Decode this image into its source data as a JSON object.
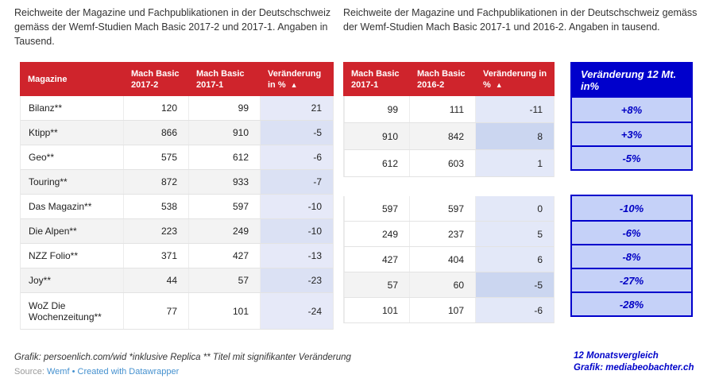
{
  "chart_data": [
    {
      "type": "table",
      "title": "Reichweite der Magazine und Fachpublikationen in der Deutschschweiz gemäss der Wemf-Studien Mach Basic 2017-2 und 2017-1. Angaben in Tausend.",
      "columns": [
        "Magazine",
        "Mach Basic 2017-2",
        "Mach Basic 2017-1",
        "Veränderung in %"
      ],
      "sort_icon": "▲",
      "rows": [
        [
          "Bilanz**",
          120,
          99,
          21
        ],
        [
          "Ktipp**",
          866,
          910,
          -5
        ],
        [
          "Geo**",
          575,
          612,
          -6
        ],
        [
          "Touring**",
          872,
          933,
          -7
        ],
        [
          "Das Magazin**",
          538,
          597,
          -10
        ],
        [
          "Die Alpen**",
          223,
          249,
          -10
        ],
        [
          "NZZ Folio**",
          371,
          427,
          -13
        ],
        [
          "Joy**",
          44,
          57,
          -23
        ],
        [
          "WoZ Die Wochenzeitung**",
          77,
          101,
          -24
        ]
      ]
    },
    {
      "type": "table",
      "title": "Reichweite der Magazine und Fachpublikationen in der Deutschschweiz gemäss der Wemf-Studien Mach Basic 2017-1 und 2016-2. Angaben in tausend.",
      "columns": [
        "Mach Basic 2017-1",
        "Mach Basic 2016-2",
        "Veränderung in %"
      ],
      "sort_icon": "▲",
      "rows": [
        [
          99,
          111,
          -11
        ],
        [
          910,
          842,
          8
        ],
        [
          612,
          603,
          1
        ],
        [
          597,
          597,
          0
        ],
        [
          249,
          237,
          5
        ],
        [
          427,
          404,
          6
        ],
        [
          57,
          60,
          -5
        ],
        [
          101,
          107,
          -6
        ]
      ]
    },
    {
      "type": "table",
      "title": "Veränderung 12 Mt. in%",
      "values": [
        "+8%",
        "+3%",
        "-5%",
        "-10%",
        "-6%",
        "-8%",
        "-27%",
        "-28%"
      ]
    }
  ],
  "footer": {
    "grafik_note": "Grafik: persoenlich.com/wid *inklusive Replica ** Titel mit signifikanter Veränderung",
    "source_label": "Source:",
    "source_link": "Wemf",
    "separator": "•",
    "created_with": "Created with Datawrapper"
  },
  "annotation": {
    "line1": "12 Monatsvergleich",
    "line2": "Grafik: mediabeobachter.ch"
  },
  "colors": {
    "header_red": "#CF242C",
    "panel_dark_blue": "#0000CC",
    "panel_light_blue": "#C5D1F8",
    "change_cell_blue": "#E6E9F8",
    "link_blue": "#4591CF"
  }
}
